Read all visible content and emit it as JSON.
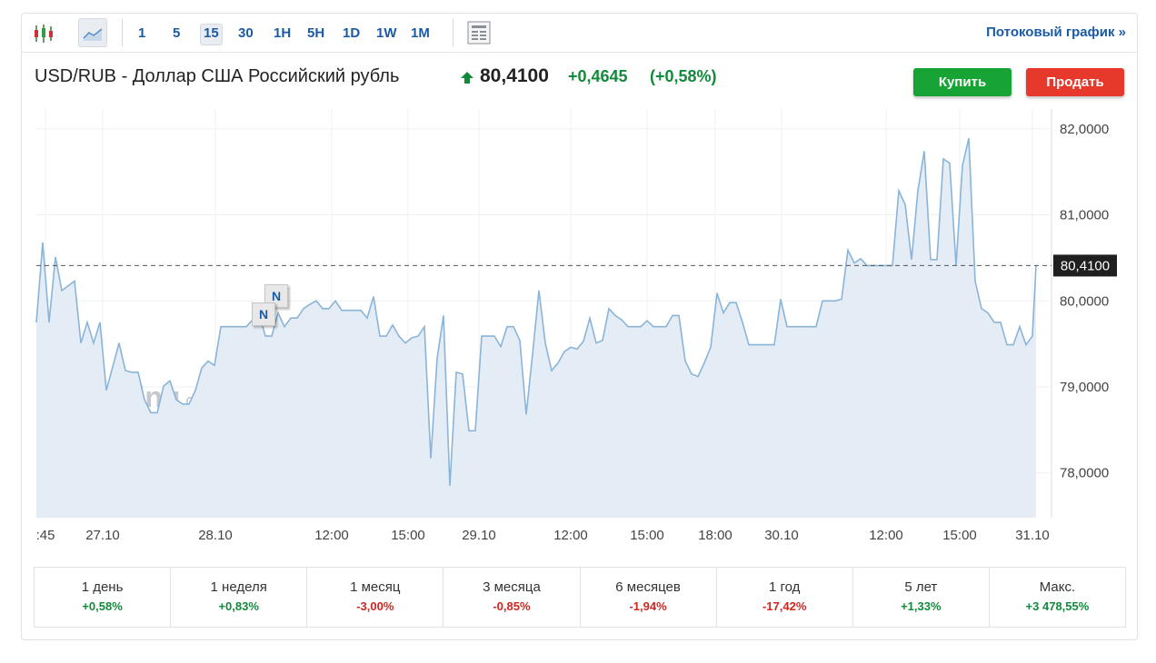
{
  "toolbar": {
    "intervals": [
      "1",
      "5",
      "15",
      "30",
      "1H",
      "5H",
      "1D",
      "1W",
      "1M"
    ],
    "stream_link": "Потоковый график »"
  },
  "header": {
    "title": "USD/RUB - Доллар США Российский рубль",
    "price": "80,4100",
    "change": "+0,4645",
    "change_percent": "(+0,58%)",
    "buy": "Купить",
    "sell": "Продать"
  },
  "chart_data": {
    "type": "line",
    "color": "#8ab4d8",
    "area_color": "#e4edf5",
    "grid": true,
    "watermark": {
      "brand": "Investing",
      "suffix": ".com"
    },
    "news_markers": [
      "N",
      "N"
    ],
    "x": [
      0.0,
      0.7,
      1.4,
      2.1,
      2.8,
      4.2,
      4.9,
      5.6,
      6.3,
      7.0,
      7.7,
      9.1,
      9.8,
      10.5,
      11.2,
      11.9,
      12.6,
      13.3,
      14.0,
      14.7,
      15.4,
      16.1,
      16.8,
      17.5,
      18.2,
      18.9,
      19.6,
      20.3,
      22.4,
      23.1,
      24.5,
      25.2,
      25.9,
      26.6,
      27.3,
      28.0,
      28.7,
      29.4,
      30.1,
      30.8,
      31.5,
      32.2,
      32.9,
      33.6,
      34.3,
      35.7,
      36.4,
      37.1,
      37.8,
      38.5,
      39.2,
      39.9,
      40.6,
      41.3,
      42.0,
      42.7,
      43.4,
      44.1,
      44.8,
      45.5,
      46.2,
      46.9,
      47.6,
      48.3,
      49.0,
      50.4,
      51.1,
      51.8,
      52.5,
      53.2,
      53.9,
      54.6,
      55.3,
      56.0,
      56.7,
      57.4,
      58.1,
      58.8,
      59.5,
      60.2,
      60.9,
      61.6,
      62.3,
      63.0,
      63.7,
      64.4,
      65.1,
      65.8,
      66.5,
      67.2,
      67.9,
      68.6,
      69.3,
      70.0,
      70.7,
      71.4,
      72.1,
      72.8,
      73.5,
      74.2,
      74.9,
      75.6,
      76.3,
      77.0,
      77.7,
      78.4,
      79.8,
      80.5,
      81.2,
      81.9,
      82.6,
      85.8,
      86.5,
      87.9,
      88.6,
      89.3,
      90.0,
      90.7,
      91.4,
      92.1,
      94.2,
      94.9,
      95.6,
      96.3,
      97.0,
      97.7,
      98.4,
      99.1,
      99.8,
      100.5,
      101.2,
      101.9,
      102.6,
      103.3,
      104.0,
      104.7,
      105.4,
      106.1,
      106.8,
      107.5,
      108.2,
      108.9,
      109.6,
      110.0
    ],
    "values": [
      79.75,
      80.68,
      79.75,
      80.51,
      80.12,
      80.23,
      79.51,
      79.75,
      79.51,
      79.75,
      78.96,
      79.51,
      79.19,
      79.17,
      79.17,
      78.85,
      78.7,
      78.7,
      79.01,
      79.07,
      78.85,
      78.8,
      78.8,
      78.96,
      79.22,
      79.3,
      79.25,
      79.7,
      79.7,
      79.7,
      79.86,
      79.59,
      79.59,
      79.86,
      79.7,
      79.8,
      79.8,
      79.91,
      79.96,
      80.0,
      79.91,
      79.91,
      80.0,
      79.89,
      79.89,
      79.89,
      79.8,
      80.05,
      79.59,
      79.59,
      79.72,
      79.59,
      79.51,
      79.57,
      79.59,
      79.7,
      78.17,
      79.33,
      79.83,
      77.85,
      79.17,
      79.15,
      78.49,
      78.49,
      79.59,
      79.59,
      79.47,
      79.7,
      79.7,
      79.54,
      78.68,
      79.38,
      80.12,
      79.51,
      79.19,
      79.28,
      79.41,
      79.46,
      79.44,
      79.53,
      79.8,
      79.51,
      79.54,
      79.91,
      79.83,
      79.78,
      79.7,
      79.7,
      79.7,
      79.77,
      79.7,
      79.7,
      79.7,
      79.83,
      79.83,
      79.3,
      79.15,
      79.12,
      79.28,
      79.46,
      80.09,
      79.86,
      79.98,
      79.98,
      79.75,
      79.49,
      79.49,
      79.49,
      79.49,
      80.02,
      79.7,
      79.7,
      80.0,
      80.0,
      80.02,
      80.59,
      80.44,
      80.49,
      80.41,
      80.41,
      80.41,
      81.28,
      81.12,
      80.48,
      81.28,
      81.74,
      80.48,
      80.48,
      81.65,
      81.6,
      80.41,
      81.57,
      81.89,
      80.23,
      79.91,
      79.86,
      79.75,
      79.75,
      79.49,
      79.49,
      79.7,
      79.49,
      79.59,
      80.41
    ],
    "xlim": [
      0,
      111.5
    ],
    "xticks": [
      {
        "value": 1.0,
        "label": ":45"
      },
      {
        "value": 7.3,
        "label": "27.10"
      },
      {
        "value": 19.7,
        "label": "28.10"
      },
      {
        "value": 32.5,
        "label": "12:00"
      },
      {
        "value": 40.9,
        "label": "15:00"
      },
      {
        "value": 48.7,
        "label": "29.10"
      },
      {
        "value": 58.8,
        "label": "12:00"
      },
      {
        "value": 67.2,
        "label": "15:00"
      },
      {
        "value": 74.7,
        "label": "18:00"
      },
      {
        "value": 82.0,
        "label": "30.10"
      },
      {
        "value": 93.5,
        "label": "12:00"
      },
      {
        "value": 101.6,
        "label": "15:00"
      },
      {
        "value": 109.6,
        "label": "31.10"
      }
    ],
    "ylim": [
      77.48,
      82.23
    ],
    "yticks": [
      {
        "value": 78,
        "label": "78,0000"
      },
      {
        "value": 79,
        "label": "79,0000"
      },
      {
        "value": 80,
        "label": "80,0000"
      },
      {
        "value": 81,
        "label": "81,0000"
      },
      {
        "value": 82,
        "label": "82,0000"
      }
    ],
    "reference_line": {
      "value": 80.41,
      "label": "80,4100"
    }
  },
  "periods": [
    {
      "label": "1 день",
      "value": "+0,58%"
    },
    {
      "label": "1 неделя",
      "value": "+0,83%"
    },
    {
      "label": "1 месяц",
      "value": "-3,00%"
    },
    {
      "label": "3 месяца",
      "value": "-0,85%"
    },
    {
      "label": "6 месяцев",
      "value": "-1,94%"
    },
    {
      "label": "1 год",
      "value": "-17,42%"
    },
    {
      "label": "5 лет",
      "value": "+1,33%"
    },
    {
      "label": "Макс.",
      "value": "+3 478,55%"
    }
  ]
}
